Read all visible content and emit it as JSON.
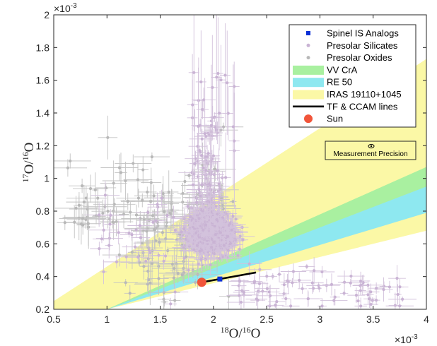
{
  "chart_data": {
    "type": "scatter",
    "x_axis": {
      "range": [
        0.5,
        4
      ],
      "ticks": [
        0.5,
        1,
        1.5,
        2,
        2.5,
        3,
        3.5,
        4
      ],
      "tick_labels": [
        "0.5",
        "1",
        "1.5",
        "2",
        "2.5",
        "3",
        "3.5",
        "4"
      ],
      "multiplier_base": "×10",
      "multiplier_exp": "-3",
      "label_sup": "18",
      "label_mid": "O/",
      "label_sup2": "16",
      "label_end": "O"
    },
    "y_axis": {
      "range": [
        0.2,
        2.0
      ],
      "ticks": [
        0.2,
        0.4,
        0.6,
        0.8,
        1.0,
        1.2,
        1.4,
        1.6,
        1.8,
        2.0
      ],
      "tick_labels": [
        "0.2",
        "0.4",
        "0.6",
        "0.8",
        "1",
        "1.2",
        "1.4",
        "1.6",
        "1.8",
        "2"
      ],
      "multiplier_base": "×10",
      "multiplier_exp": "-3",
      "label_sup": "17",
      "label_mid": "O/",
      "label_sup2": "16",
      "label_end": "O"
    },
    "legend": {
      "placement": "top-right",
      "entries": [
        {
          "label": "Spinel IS Analogs",
          "marker": "square",
          "color": "#0b2fd6"
        },
        {
          "label": "Presolar Silicates",
          "marker": "circle",
          "color": "#c9b3d4"
        },
        {
          "label": "Presolar Oxides",
          "marker": "circle",
          "color": "#b8b8b8"
        },
        {
          "label": "VV CrA",
          "marker": "patch",
          "color": "#a9f0a0"
        },
        {
          "label": "RE 50",
          "marker": "patch",
          "color": "#8ee8f0"
        },
        {
          "label": "IRAS 19110+1045",
          "marker": "patch",
          "color": "#fbf8a6"
        },
        {
          "label": "TF & CCAM lines",
          "marker": "line",
          "color": "#000000"
        },
        {
          "label": "Sun",
          "marker": "circle",
          "color": "#f1553a"
        }
      ]
    },
    "bands": [
      {
        "name": "IRAS 19110+1045",
        "color": "#fbf8a6",
        "upper": [
          [
            0.5,
            0.25
          ],
          [
            4.0,
            1.73
          ]
        ],
        "lower": [
          [
            0.5,
            0.12
          ],
          [
            4.0,
            0.68
          ]
        ]
      },
      {
        "name": "VV CrA",
        "color": "#a9f0a0",
        "upper": [
          [
            1.0,
            0.2
          ],
          [
            4.0,
            1.07
          ]
        ],
        "lower": [
          [
            1.0,
            0.2
          ],
          [
            4.0,
            0.89
          ]
        ]
      },
      {
        "name": "RE 50",
        "color": "#8ee8f0",
        "upper": [
          [
            1.0,
            0.2
          ],
          [
            4.0,
            0.95
          ]
        ],
        "lower": [
          [
            1.0,
            0.2
          ],
          [
            4.0,
            0.79
          ]
        ]
      }
    ],
    "tf_ccam_line": {
      "x": [
        1.89,
        2.06,
        2.4
      ],
      "y": [
        0.365,
        0.385,
        0.425
      ]
    },
    "sun": {
      "x": 1.89,
      "y": 0.365
    },
    "spinel_is_analogs": [
      {
        "x": 2.06,
        "y": 0.385
      }
    ],
    "annotation": {
      "text": "Measurement Precision",
      "symbol_x": 3.3,
      "symbol_y": 1.22
    }
  }
}
